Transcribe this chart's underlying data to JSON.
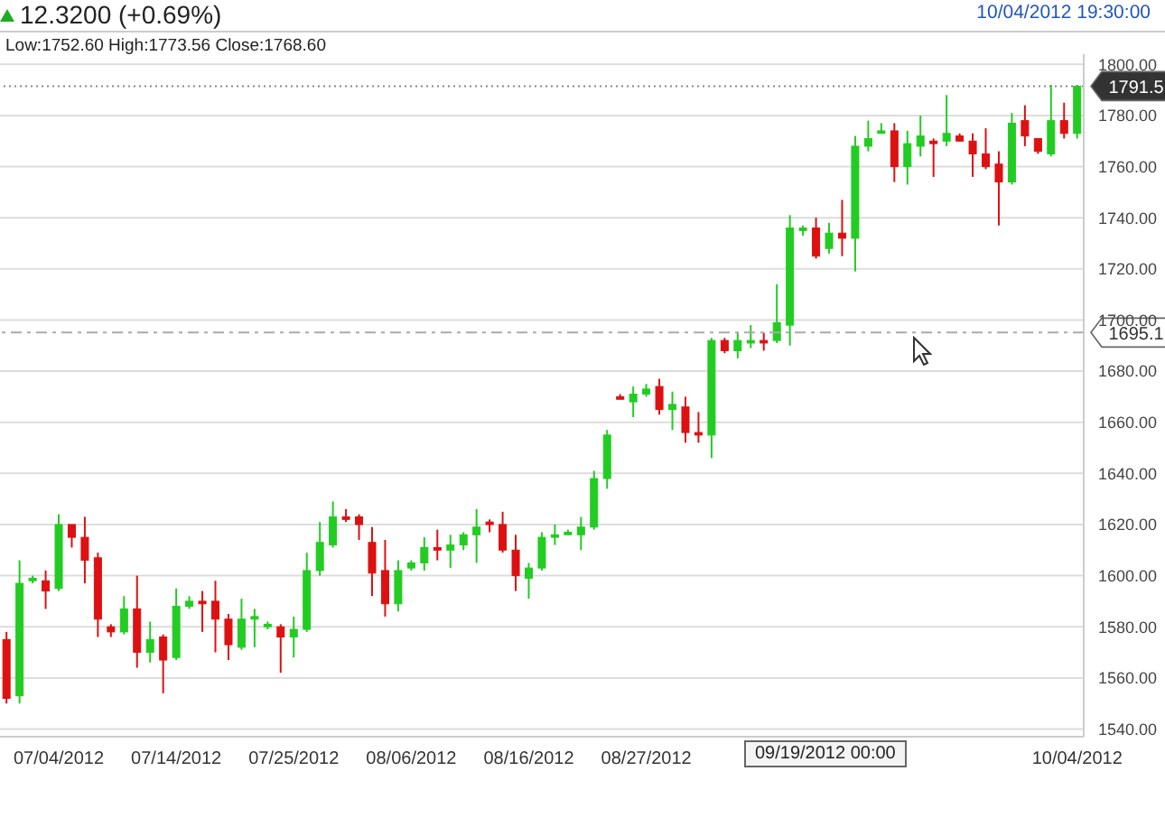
{
  "chart_data": {
    "type": "candlestick",
    "title": "12.3200 (+0.69%)",
    "subtitle": "Low:1752.60 High:1773.56 Close:1768.60",
    "annotations": [
      "10/04/2012 19:30:00",
      "09/19/2012 00:00"
    ],
    "categories": [
      null,
      null,
      null,
      null,
      "07/04/2012",
      null,
      null,
      null,
      null,
      null,
      null,
      null,
      null,
      "07/14/2012",
      null,
      null,
      null,
      null,
      null,
      null,
      null,
      null,
      "07/25/2012",
      null,
      null,
      null,
      null,
      null,
      null,
      null,
      null,
      "08/06/2012",
      null,
      null,
      null,
      null,
      null,
      null,
      null,
      null,
      "08/16/2012",
      null,
      null,
      null,
      null,
      null,
      null,
      null,
      null,
      "08/27/2012",
      null,
      null,
      null,
      null,
      null,
      null,
      null,
      null,
      null,
      null,
      null,
      null,
      null,
      null,
      null,
      null,
      null,
      null,
      null,
      null,
      null,
      null,
      null,
      null,
      null,
      null,
      null,
      null,
      null,
      null,
      null,
      null,
      "10/04/2012"
    ],
    "ohlc": [
      [
        1575,
        1578,
        1550,
        1552
      ],
      [
        1553,
        1606,
        1550,
        1597
      ],
      [
        1598,
        1600,
        1597,
        1599
      ],
      [
        1598,
        1602,
        1587,
        1594
      ],
      [
        1595,
        1624,
        1594,
        1620
      ],
      [
        1620,
        1620,
        1611,
        1615
      ],
      [
        1615,
        1623,
        1597,
        1606
      ],
      [
        1607,
        1609,
        1576,
        1583
      ],
      [
        1580,
        1581,
        1576,
        1578
      ],
      [
        1578,
        1592,
        1577,
        1587
      ],
      [
        1587,
        1600,
        1564,
        1570
      ],
      [
        1570,
        1582,
        1566,
        1575
      ],
      [
        1576,
        1577,
        1554,
        1567
      ],
      [
        1568,
        1595,
        1567,
        1588
      ],
      [
        1588,
        1592,
        1587,
        1590
      ],
      [
        1590,
        1594,
        1578,
        1589
      ],
      [
        1590,
        1598,
        1570,
        1583
      ],
      [
        1583,
        1585,
        1567,
        1573
      ],
      [
        1572,
        1591,
        1571,
        1583
      ],
      [
        1583,
        1587,
        1572,
        1584
      ],
      [
        1580,
        1582,
        1579,
        1581
      ],
      [
        1580,
        1581,
        1562,
        1576
      ],
      [
        1576,
        1584,
        1568,
        1579
      ],
      [
        1579,
        1609,
        1578,
        1602
      ],
      [
        1602,
        1621,
        1600,
        1613
      ],
      [
        1612,
        1629,
        1611,
        1623
      ],
      [
        1623,
        1626,
        1621,
        1622
      ],
      [
        1623,
        1624,
        1614,
        1620
      ],
      [
        1613,
        1619,
        1592,
        1601
      ],
      [
        1602,
        1614,
        1584,
        1589
      ],
      [
        1589,
        1606,
        1586,
        1602
      ],
      [
        1603,
        1606,
        1602,
        1605
      ],
      [
        1605,
        1615,
        1602,
        1611
      ],
      [
        1611,
        1618,
        1606,
        1610
      ],
      [
        1610,
        1616,
        1603,
        1612
      ],
      [
        1612,
        1617,
        1610,
        1616
      ],
      [
        1616,
        1626,
        1605,
        1619
      ],
      [
        1621,
        1622,
        1617,
        1620
      ],
      [
        1620,
        1625,
        1609,
        1610
      ],
      [
        1610,
        1616,
        1594,
        1600
      ],
      [
        1599,
        1605,
        1591,
        1603
      ],
      [
        1603,
        1617,
        1602,
        1615
      ],
      [
        1615,
        1620,
        1612,
        1616
      ],
      [
        1616,
        1618,
        1616,
        1617
      ],
      [
        1616,
        1623,
        1610,
        1619
      ],
      [
        1619,
        1641,
        1618,
        1638
      ],
      [
        1638,
        1657,
        1634,
        1655
      ],
      [
        1670,
        1671,
        1669,
        1669
      ],
      [
        1668,
        1674,
        1662,
        1671
      ],
      [
        1671,
        1675,
        1670,
        1673
      ],
      [
        1674,
        1677,
        1663,
        1665
      ],
      [
        1665,
        1672,
        1657,
        1667
      ],
      [
        1666,
        1670,
        1652,
        1656
      ],
      [
        1656,
        1664,
        1652,
        1655
      ],
      [
        1655,
        1693,
        1646,
        1692
      ],
      [
        1692,
        1693,
        1687,
        1688
      ],
      [
        1688,
        1695,
        1685,
        1692
      ],
      [
        1691,
        1698,
        1689,
        1692
      ],
      [
        1692,
        1695,
        1688,
        1691
      ],
      [
        1692,
        1714,
        1691,
        1699
      ],
      [
        1698,
        1741,
        1690,
        1736
      ],
      [
        1735,
        1737,
        1733,
        1736
      ],
      [
        1736,
        1740,
        1724,
        1725
      ],
      [
        1728,
        1738,
        1726,
        1734
      ],
      [
        1734,
        1747,
        1725,
        1732
      ],
      [
        1732,
        1772,
        1719,
        1768
      ],
      [
        1768,
        1778,
        1766,
        1771
      ],
      [
        1773,
        1777,
        1773,
        1774
      ],
      [
        1774,
        1777,
        1754,
        1760
      ],
      [
        1760,
        1774,
        1753,
        1769
      ],
      [
        1768,
        1780,
        1764,
        1772
      ],
      [
        1770,
        1771,
        1756,
        1769
      ],
      [
        1770,
        1788,
        1768,
        1773
      ],
      [
        1772,
        1773,
        1770,
        1770
      ],
      [
        1770,
        1773,
        1756,
        1765
      ],
      [
        1765,
        1775,
        1759,
        1760
      ],
      [
        1761,
        1766,
        1737,
        1754
      ],
      [
        1754,
        1781,
        1753,
        1777
      ],
      [
        1778,
        1784,
        1768,
        1772
      ],
      [
        1771,
        1771,
        1765,
        1766
      ],
      [
        1765,
        1792,
        1764,
        1778
      ],
      [
        1778,
        1785,
        1771,
        1773
      ],
      [
        1773,
        1792,
        1771,
        1791.5
      ]
    ],
    "colors": [
      "#dd1111",
      "#22cc22",
      "#22cc22",
      "#dd1111",
      "#22cc22",
      "#dd1111",
      "#dd1111",
      "#dd1111",
      "#dd1111",
      "#22cc22",
      "#dd1111",
      "#22cc22",
      "#dd1111",
      "#22cc22",
      "#22cc22",
      "#dd1111",
      "#dd1111",
      "#dd1111",
      "#22cc22",
      "#22cc22",
      "#22cc22",
      "#dd1111",
      "#22cc22",
      "#22cc22",
      "#22cc22",
      "#22cc22",
      "#dd1111",
      "#dd1111",
      "#dd1111",
      "#dd1111",
      "#22cc22",
      "#22cc22",
      "#22cc22",
      "#dd1111",
      "#22cc22",
      "#22cc22",
      "#22cc22",
      "#dd1111",
      "#dd1111",
      "#dd1111",
      "#22cc22",
      "#22cc22",
      "#22cc22",
      "#22cc22",
      "#22cc22",
      "#22cc22",
      "#22cc22",
      "#dd1111",
      "#22cc22",
      "#22cc22",
      "#dd1111",
      "#22cc22",
      "#dd1111",
      "#dd1111",
      "#22cc22",
      "#dd1111",
      "#22cc22",
      "#22cc22",
      "#dd1111",
      "#22cc22",
      "#22cc22",
      "#22cc22",
      "#dd1111",
      "#22cc22",
      "#dd1111",
      "#22cc22",
      "#22cc22",
      "#22cc22",
      "#dd1111",
      "#22cc22",
      "#22cc22",
      "#dd1111",
      "#22cc22",
      "#dd1111",
      "#dd1111",
      "#dd1111",
      "#dd1111",
      "#22cc22",
      "#dd1111",
      "#dd1111",
      "#22cc22",
      "#dd1111",
      "#22cc22"
    ],
    "ylim": [
      1537,
      1804
    ],
    "yticks": [
      {
        "value": 1540,
        "label": "1540.00"
      },
      {
        "value": 1560,
        "label": "1560.00"
      },
      {
        "value": 1580,
        "label": "1580.00"
      },
      {
        "value": 1600,
        "label": "1600.00"
      },
      {
        "value": 1620,
        "label": "1620.00"
      },
      {
        "value": 1640,
        "label": "1640.00"
      },
      {
        "value": 1660,
        "label": "1660.00"
      },
      {
        "value": 1680,
        "label": "1680.00"
      },
      {
        "value": 1700,
        "label": "1700.00"
      },
      {
        "value": 1720,
        "label": "1720.00"
      },
      {
        "value": 1740,
        "label": "1740.00"
      },
      {
        "value": 1760,
        "label": "1760.00"
      },
      {
        "value": 1780,
        "label": "1780.00"
      },
      {
        "value": 1800,
        "label": "1800.00"
      }
    ],
    "grid": "y",
    "ref_lines": [
      {
        "axis": "y",
        "value": 1791.5,
        "label": "1791.5",
        "line_style": "dotted",
        "color": "#888888"
      },
      {
        "axis": "y",
        "value": 1695.1,
        "label": "1695.1",
        "line_style": "dashed",
        "color": "#aaaaaa"
      }
    ]
  }
}
